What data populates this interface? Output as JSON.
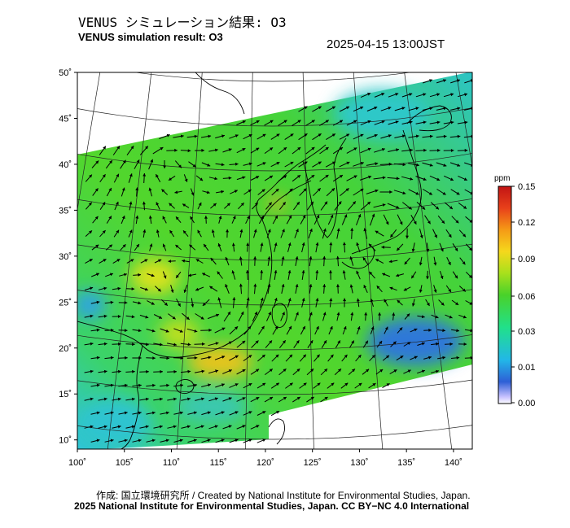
{
  "header": {
    "title_jp": "VENUS シミュレーション結果: O3",
    "title_en": "VENUS simulation result: O3",
    "timestamp": "2025-04-15 13:00JST"
  },
  "footer": {
    "credit_line1": "作成: 国立環境研究所 / Created by National Institute for Environmental Studies, Japan.",
    "credit_line2": "2025 National Institute for Environmental Studies, Japan. CC BY−NC 4.0 International"
  },
  "map": {
    "lon_range": [
      100,
      142
    ],
    "lat_range": [
      9,
      50
    ],
    "lon_ticks": [
      "100˚",
      "105˚",
      "110˚",
      "115˚",
      "120˚",
      "125˚",
      "130˚",
      "135˚",
      "140˚"
    ],
    "lat_ticks": [
      "10˚",
      "15˚",
      "20˚",
      "25˚",
      "30˚",
      "35˚",
      "40˚",
      "45˚",
      "50˚"
    ]
  },
  "colorbar": {
    "unit": "ppm",
    "tick_labels": [
      "0.15",
      "0.12",
      "0.09",
      "0.06",
      "0.03",
      "0.01",
      "0.00"
    ],
    "colors": [
      "#ffffff",
      "#2e5fd6",
      "#22b7e8",
      "#21e08a",
      "#49d22a",
      "#a8e01c",
      "#f5d81c",
      "#f59a16",
      "#e8401a",
      "#c21414"
    ]
  }
}
